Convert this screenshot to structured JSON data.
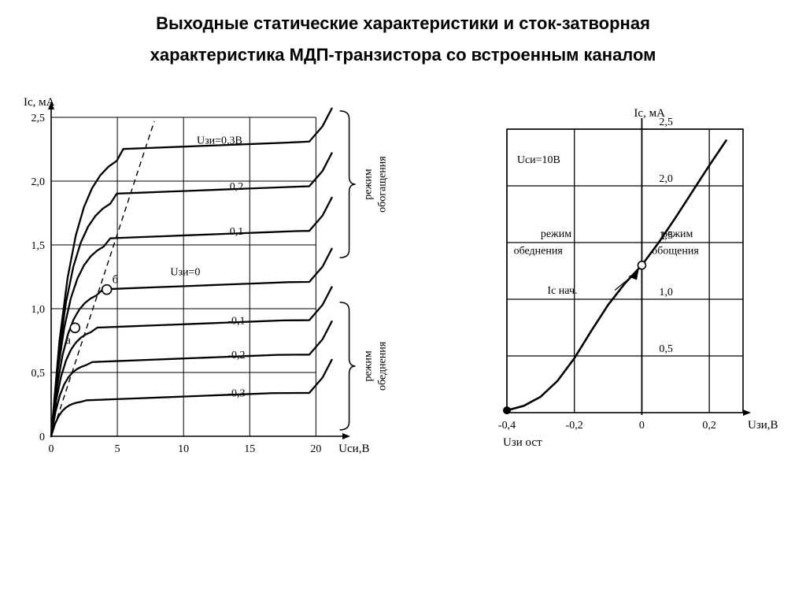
{
  "title_line1": "Выходные статические характеристики и сток-затворная",
  "title_line2": "характеристика  МДП-транзистора со  встроенным каналом",
  "left_chart": {
    "type": "line",
    "y_axis_label": "Iс, мА",
    "x_axis_label": "Uси,В",
    "ylim": [
      0,
      2.5
    ],
    "xlim": [
      0,
      22
    ],
    "y_ticks": [
      0,
      0.5,
      1.0,
      1.5,
      2.0,
      2.5
    ],
    "y_tick_labels": [
      "0",
      "0,5",
      "1,0",
      "1,5",
      "2,0",
      "2,5"
    ],
    "x_ticks": [
      0,
      5,
      10,
      15,
      20
    ],
    "x_tick_labels": [
      "0",
      "5",
      "10",
      "15",
      "20"
    ],
    "grid_color": "#000000",
    "curve_color": "#000000",
    "curve_width": 2.3,
    "background_color": "#ffffff",
    "font_size_axis": 14,
    "font_size_label": 15,
    "point_a_label": "а",
    "point_b_label": "б",
    "uzn_zero_label": "Uзи=0",
    "uzn_top_label": "Uзи=0,3В",
    "brace_top_label": "режим обогащения",
    "brace_bottom_label": "режим обеднения",
    "curves": [
      {
        "label": "0,3",
        "label_show": false,
        "sat_y": 2.25
      },
      {
        "label": "0,2",
        "label_show": true,
        "sat_y": 1.9
      },
      {
        "label": "0,1",
        "label_show": true,
        "sat_y": 1.55
      },
      {
        "label": "0",
        "label_show": false,
        "sat_y": 1.15
      },
      {
        "label": "-0,1",
        "label_show": true,
        "sat_y": 0.85
      },
      {
        "label": "-0,2",
        "label_show": true,
        "sat_y": 0.58
      },
      {
        "label": "-0,3",
        "label_show": true,
        "sat_y": 0.28
      }
    ]
  },
  "right_chart": {
    "type": "line",
    "y_axis_label": "Iс, мА",
    "x_axis_label": "Uзи,В",
    "ylim": [
      0,
      2.5
    ],
    "xlim": [
      -0.4,
      0.3
    ],
    "y_ticks": [
      0.5,
      1.0,
      1.5,
      2.0,
      2.5
    ],
    "y_tick_labels": [
      "0,5",
      "1,0",
      "1,5",
      "2,0",
      "2,5"
    ],
    "x_ticks": [
      -0.4,
      -0.2,
      0,
      0.2
    ],
    "x_tick_labels": [
      "-0,4",
      "-0,2",
      "0",
      "0,2"
    ],
    "grid_color": "#000000",
    "curve_color": "#000000",
    "curve_width": 2.6,
    "background_color": "#ffffff",
    "font_size_axis": 14,
    "condition_label": "Uси=10В",
    "left_region_label1": "режим",
    "left_region_label2": "обеднения",
    "right_region_label1": "режим",
    "right_region_label2": "обощения",
    "ic_start_label": "Iс нач.",
    "uzn_cutoff_label": "Uзи ост",
    "y_tick_pos_15": "1,5",
    "points": [
      {
        "x": -0.4,
        "y": 0.02
      },
      {
        "x": -0.35,
        "y": 0.06
      },
      {
        "x": -0.3,
        "y": 0.14
      },
      {
        "x": -0.25,
        "y": 0.28
      },
      {
        "x": -0.2,
        "y": 0.48
      },
      {
        "x": -0.15,
        "y": 0.72
      },
      {
        "x": -0.1,
        "y": 0.95
      },
      {
        "x": -0.05,
        "y": 1.14
      },
      {
        "x": 0.0,
        "y": 1.3
      },
      {
        "x": 0.05,
        "y": 1.5
      },
      {
        "x": 0.1,
        "y": 1.72
      },
      {
        "x": 0.15,
        "y": 1.95
      },
      {
        "x": 0.2,
        "y": 2.18
      },
      {
        "x": 0.25,
        "y": 2.4
      }
    ]
  }
}
